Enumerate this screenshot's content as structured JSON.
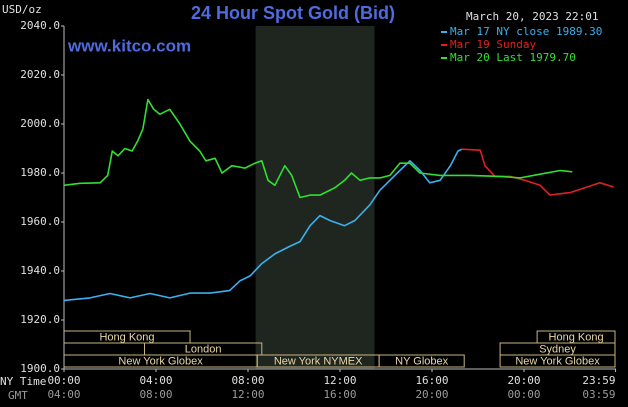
{
  "chart_data": {
    "type": "line",
    "title": "24 Hour Spot Gold (Bid)",
    "subtitle": "March 20, 2023 22:01",
    "ylabel": "USD/oz",
    "watermark": "www.kitco.com",
    "x_axis_labels": [
      "NY Time",
      "GMT"
    ],
    "xlim": [
      0,
      24
    ],
    "ylim": [
      1900,
      2040
    ],
    "xticks": [
      {
        "value": 0,
        "label": "00:00"
      },
      {
        "value": 4,
        "label": "04:00"
      },
      {
        "value": 8,
        "label": "08:00"
      },
      {
        "value": 12,
        "label": "12:00"
      },
      {
        "value": 16,
        "label": "16:00"
      },
      {
        "value": 20,
        "label": "20:00"
      },
      {
        "value": 23.98,
        "label": "23:59"
      }
    ],
    "gmt_labels": [
      "04:00",
      "08:00",
      "12:00",
      "16:00",
      "20:00",
      "00:00",
      "03:59"
    ],
    "yticks": [
      {
        "value": 1900,
        "label": "1900.0"
      },
      {
        "value": 1920,
        "label": "1920.0"
      },
      {
        "value": 1940,
        "label": "1940.0"
      },
      {
        "value": 1960,
        "label": "1960.0"
      },
      {
        "value": 1980,
        "label": "1980.0"
      },
      {
        "value": 2000,
        "label": "2000.0"
      },
      {
        "value": 2020,
        "label": "2020.0"
      },
      {
        "value": 2040,
        "label": "2040.0"
      }
    ],
    "grid": false,
    "legend": "top-right",
    "shade": [
      8.33,
      13.5
    ],
    "sessions": [
      [
        {
          "name": "Hong Kong",
          "start": 0,
          "end": 5.48
        },
        {
          "name": "Hong Kong",
          "start": 20.57,
          "end": 24
        }
      ],
      [
        {
          "name": "London",
          "start": 3.5,
          "end": 8.6
        },
        {
          "name": "Sydney",
          "start": 18.96,
          "end": 24
        }
      ],
      [
        {
          "name": "New York Globex",
          "start": 0,
          "end": 8.4
        },
        {
          "name": "New York NYMEX",
          "start": 8.4,
          "end": 13.7
        },
        {
          "name": "NY Globex",
          "start": 13.7,
          "end": 17.4
        },
        {
          "name": "New York Globex",
          "start": 18.96,
          "end": 24
        }
      ]
    ],
    "series": [
      {
        "name": "Mar 17 NY close 1989.30",
        "color": "#3ab0f0",
        "x": [
          0,
          1.13,
          2,
          2.87,
          3.74,
          4.6,
          5.48,
          6.35,
          7.2,
          7.65,
          8.09,
          8.6,
          9.17,
          9.8,
          10.26,
          10.7,
          11.13,
          11.56,
          12.2,
          12.65,
          13.3,
          13.74,
          14.17,
          14.6,
          15.04,
          15.48,
          15.9,
          16.35,
          16.8,
          17.13,
          17.3
        ],
        "values": [
          1928,
          1929,
          1930.8,
          1929,
          1930.8,
          1929,
          1931,
          1931,
          1932,
          1936,
          1938,
          1943,
          1947,
          1950,
          1952,
          1958.5,
          1962.6,
          1960.6,
          1958.5,
          1960.6,
          1967,
          1973,
          1977,
          1981,
          1985,
          1981,
          1976,
          1977,
          1983,
          1989,
          1989.7
        ]
      },
      {
        "name": "Mar 19 Sunday",
        "color": "#e02020",
        "x": [
          17.3,
          18.1,
          18.3,
          18.74,
          19.4,
          20.04,
          20.7,
          21.13,
          22,
          22.65,
          23.3,
          23.9
        ],
        "values": [
          1989.7,
          1989.3,
          1983,
          1978.6,
          1978.6,
          1977,
          1975,
          1971,
          1972,
          1974,
          1976,
          1974.3
        ]
      },
      {
        "name": "Mar 20 Last 1979.70",
        "color": "#30e030",
        "x": [
          0,
          0.7,
          1.57,
          1.9,
          2.1,
          2.35,
          2.65,
          2.96,
          3.2,
          3.43,
          3.65,
          3.9,
          4.17,
          4.6,
          5.04,
          5.48,
          5.9,
          6.17,
          6.57,
          6.87,
          7.3,
          7.87,
          8.3,
          8.6,
          8.87,
          9.17,
          9.6,
          9.9,
          10.26,
          10.7,
          11.13,
          11.78,
          12.2,
          12.5,
          12.87,
          13.3,
          13.74,
          14.17,
          14.6,
          15.04,
          15.48,
          16.35,
          17.65,
          18.96,
          19.83,
          20.7,
          21.57,
          22.1
        ],
        "values": [
          1975,
          1975.8,
          1976,
          1979,
          1989,
          1987,
          1990,
          1989,
          1993,
          1998,
          2010,
          2006,
          2004,
          2006,
          2000,
          1993,
          1989,
          1985,
          1986,
          1980,
          1983,
          1982,
          1984,
          1985,
          1977,
          1975,
          1983,
          1979,
          1970,
          1971,
          1971,
          1974,
          1977,
          1980,
          1977,
          1978,
          1978,
          1979,
          1984,
          1984,
          1980,
          1979,
          1979,
          1978.6,
          1978,
          1979.5,
          1981,
          1980.5
        ]
      }
    ]
  }
}
